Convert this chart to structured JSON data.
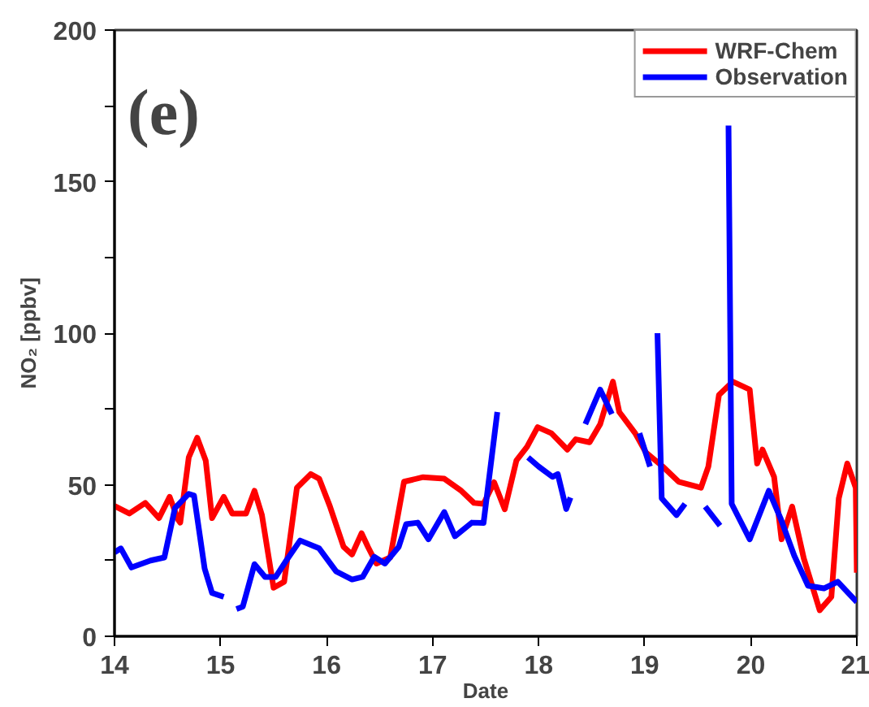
{
  "chart_data": {
    "type": "line",
    "xlabel": "Date",
    "ylabel": "NO₂ [ppbv]",
    "annotations": [
      "(e)"
    ],
    "xlim": [
      14,
      21
    ],
    "xticks": [
      14,
      15,
      16,
      17,
      18,
      19,
      20,
      21
    ],
    "ylim": [
      0,
      200
    ],
    "yticks": [
      0,
      {
        "value": 25,
        "label": null
      },
      50,
      {
        "value": 75,
        "label": null
      },
      100,
      {
        "value": 125,
        "label": null
      },
      150,
      {
        "value": 175,
        "label": null
      },
      200
    ],
    "grid": false,
    "legend": "top right",
    "line_style": "solid",
    "marker": "none",
    "series": [
      {
        "name": "WRF-Chem",
        "color": "#ff0000",
        "x": [
          14.0,
          14.14,
          14.29,
          14.42,
          14.52,
          14.6,
          14.62,
          14.7,
          14.78,
          14.86,
          14.92,
          15.03,
          15.11,
          15.24,
          15.32,
          15.39,
          15.5,
          15.6,
          15.72,
          15.85,
          15.93,
          16.03,
          16.16,
          16.24,
          16.33,
          16.39,
          16.47,
          16.6,
          16.73,
          16.91,
          17.11,
          17.27,
          17.39,
          17.48,
          17.58,
          17.68,
          17.79,
          17.89,
          17.99,
          18.12,
          18.27,
          18.35,
          18.48,
          18.58,
          18.7,
          18.76,
          18.91,
          19.01,
          19.17,
          19.32,
          19.53,
          19.6,
          19.7,
          19.83,
          19.99,
          20.06,
          20.11,
          20.22,
          20.29,
          20.39,
          20.5,
          20.65,
          20.76,
          20.83,
          20.91,
          20.99,
          21.0
        ],
        "values": [
          43,
          40.5,
          44,
          39,
          46,
          38.5,
          37.5,
          59,
          65.5,
          58,
          39,
          46,
          40.5,
          40.5,
          48,
          40,
          16,
          18,
          49,
          53.5,
          52,
          43,
          29.5,
          27,
          34,
          29.5,
          24,
          26,
          51,
          52.5,
          52,
          48,
          44,
          43.7,
          50.8,
          41.9,
          58,
          62.5,
          69,
          67,
          61.6,
          65,
          64,
          70,
          84,
          74,
          67,
          60.7,
          56,
          51,
          49,
          56,
          79.6,
          84,
          81.4,
          57,
          61.6,
          52.6,
          32,
          42.8,
          25.7,
          8.6,
          13,
          45.5,
          57,
          49,
          21
        ]
      },
      {
        "name": "Observation",
        "color": "#0000ff",
        "x": [
          14.0,
          14.06,
          14.16,
          14.34,
          14.47,
          14.57,
          14.7,
          14.75,
          14.85,
          14.92,
          15.03,
          15.09,
          15.15,
          15.21,
          15.32,
          15.42,
          15.52,
          15.62,
          15.75,
          15.93,
          16.09,
          16.24,
          16.34,
          16.45,
          16.55,
          16.68,
          16.75,
          16.86,
          16.96,
          17.11,
          17.21,
          17.37,
          17.48,
          17.61,
          17.75,
          17.9,
          18.0,
          18.13,
          18.18,
          18.26,
          18.3,
          18.37,
          18.44,
          18.58,
          18.69,
          18.82,
          18.95,
          19.05,
          19.09,
          19.12,
          19.16,
          19.3,
          19.38,
          19.48,
          19.57,
          19.71,
          19.76,
          19.79,
          19.82,
          19.99,
          20.17,
          20.28,
          20.41,
          20.54,
          20.69,
          20.82,
          21.0
        ],
        "values": [
          27.7,
          29,
          22.7,
          25,
          26,
          42.3,
          47,
          46.4,
          22.3,
          14.3,
          13,
          null,
          9,
          9.8,
          23.8,
          19.6,
          19.6,
          25,
          31.6,
          29,
          21.4,
          18.75,
          19.6,
          26.25,
          24,
          29.5,
          37,
          37.5,
          32,
          41,
          33,
          37.5,
          37.4,
          74,
          null,
          59,
          56,
          52.6,
          53.5,
          42,
          45.8,
          null,
          70,
          81.4,
          73.3,
          null,
          67,
          56,
          null,
          100,
          45.5,
          40,
          43.7,
          null,
          42.8,
          36.5,
          null,
          168.5,
          43.7,
          32,
          48,
          39,
          26.6,
          16.7,
          15.8,
          18,
          11.3
        ]
      }
    ]
  }
}
